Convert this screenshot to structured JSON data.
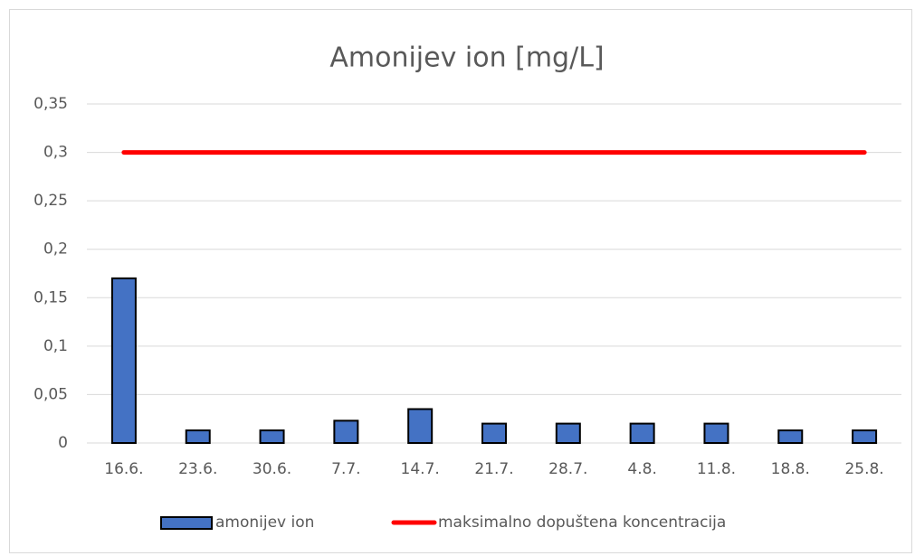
{
  "chart_data": {
    "type": "bar",
    "title": "Amonijev ion [mg/L]",
    "categories": [
      "16.6.",
      "23.6.",
      "30.6.",
      "7.7.",
      "14.7.",
      "21.7.",
      "28.7.",
      "4.8.",
      "11.8.",
      "18.8.",
      "25.8."
    ],
    "series": [
      {
        "name": "amonijev ion",
        "color": "#4472c4",
        "type": "bar",
        "values": [
          0.17,
          0.013,
          0.013,
          0.023,
          0.035,
          0.02,
          0.02,
          0.02,
          0.02,
          0.013,
          0.013
        ]
      },
      {
        "name": "maksimalno dopuštena koncentracija",
        "color": "#ff0000",
        "type": "line",
        "values": [
          0.3,
          0.3,
          0.3,
          0.3,
          0.3,
          0.3,
          0.3,
          0.3,
          0.3,
          0.3,
          0.3
        ]
      }
    ],
    "ylim": [
      0,
      0.35
    ],
    "yticks": [
      0,
      {
        "value": 0.05,
        "label": "0,05"
      },
      {
        "value": 0.1,
        "label": "0,1"
      },
      {
        "value": 0.15,
        "label": "0,15"
      },
      {
        "value": 0.2,
        "label": "0,2"
      },
      {
        "value": 0.25,
        "label": "0,25"
      },
      {
        "value": 0.3,
        "label": "0,3"
      },
      {
        "value": 0.35,
        "label": "0,35"
      }
    ],
    "grid": true,
    "legend": "bottom"
  }
}
